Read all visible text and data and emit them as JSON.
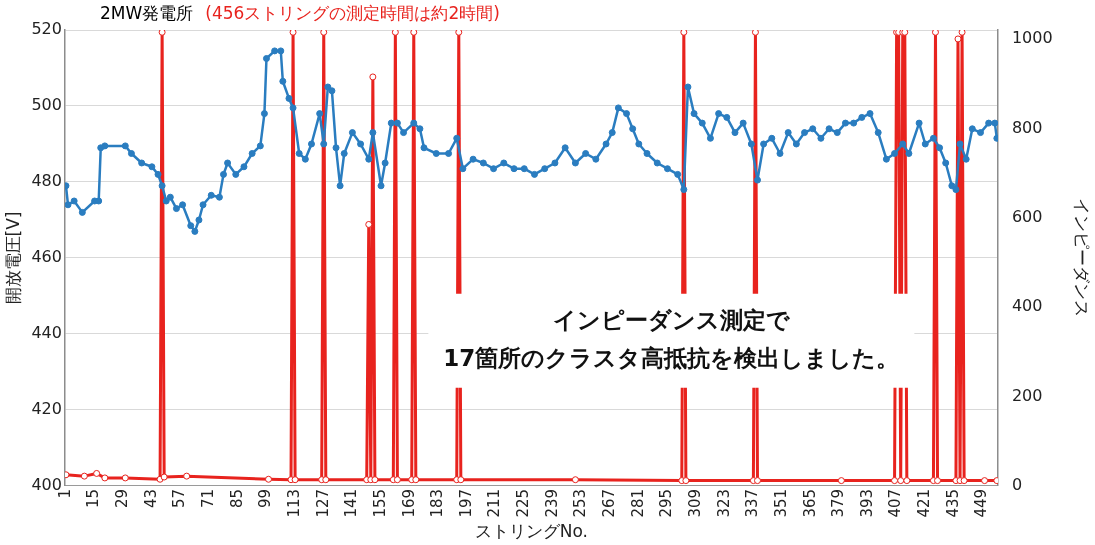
{
  "chart_data": {
    "type": "line",
    "title": "2MW発電所",
    "subtitle": "(456ストリングの測定時間は約2時間)",
    "xlabel": "ストリングNo.",
    "ylabel": "開放電圧[V]",
    "y2label": "インピーダンス",
    "annotations": [
      "インピーダンス測定で\n17箇所のクラスタ高抵抗を検出しました。"
    ],
    "xlim": [
      0.5,
      456.5
    ],
    "xticks": [
      1,
      15,
      29,
      43,
      57,
      71,
      85,
      99,
      113,
      127,
      141,
      155,
      169,
      183,
      197,
      211,
      225,
      239,
      253,
      267,
      281,
      295,
      309,
      323,
      337,
      351,
      365,
      379,
      393,
      407,
      421,
      435,
      449
    ],
    "ylim": [
      400,
      520
    ],
    "yticks": [
      400,
      420,
      440,
      460,
      480,
      500,
      520
    ],
    "y2lim": [
      0,
      1020
    ],
    "y2ticks": [
      0,
      200,
      400,
      600,
      800,
      1000
    ],
    "grid": "y",
    "legend": false,
    "marker": "circle",
    "series": [
      {
        "color": "#2a7dc0",
        "x": [
          1,
          2,
          5,
          9,
          15,
          17,
          18,
          20,
          30,
          33,
          38,
          43,
          46,
          48,
          50,
          52,
          55,
          58,
          62,
          64,
          66,
          68,
          72,
          76,
          78,
          80,
          84,
          88,
          92,
          96,
          98,
          99,
          103,
          106,
          107,
          110,
          112,
          115,
          118,
          121,
          125,
          127,
          129,
          131,
          133,
          135,
          137,
          141,
          145,
          149,
          151,
          155,
          157,
          160,
          163,
          166,
          171,
          174,
          176,
          182,
          188,
          192,
          195,
          200,
          205,
          210,
          215,
          220,
          225,
          230,
          235,
          240,
          245,
          250,
          255,
          260,
          265,
          268,
          271,
          275,
          278,
          281,
          285,
          290,
          295,
          300,
          303,
          305,
          308,
          312,
          316,
          320,
          324,
          328,
          332,
          336,
          339,
          342,
          346,
          350,
          354,
          358,
          362,
          366,
          370,
          374,
          378,
          382,
          386,
          390,
          394,
          398,
          402,
          406,
          410,
          413,
          418,
          421,
          425,
          428,
          431,
          434,
          436,
          438,
          441,
          444,
          448,
          452,
          455,
          456
        ],
        "values": [
          479,
          474,
          475,
          472,
          475,
          475,
          489,
          489.5,
          489.5,
          487.5,
          485,
          484,
          482,
          479,
          475,
          476,
          473,
          474,
          468.5,
          467,
          470,
          474,
          476.5,
          476,
          482,
          485,
          482,
          484,
          487.5,
          489.5,
          498,
          512.5,
          514.5,
          514.5,
          506.5,
          502,
          499.5,
          487.5,
          486,
          490,
          498,
          490,
          505,
          504,
          489,
          479,
          487.5,
          493,
          490,
          486,
          493,
          479,
          485,
          495.5,
          495.5,
          493,
          495.5,
          494,
          489,
          487.5,
          487.5,
          491.5,
          483.5,
          486,
          485,
          483.5,
          485,
          483.5,
          483.5,
          482,
          483.5,
          485,
          489,
          485,
          487.5,
          486,
          490,
          493,
          499.5,
          498,
          494,
          490,
          487.5,
          485,
          483.5,
          482,
          478,
          505,
          498,
          495.5,
          491.5,
          498,
          497,
          493,
          495.5,
          490,
          480.5,
          490,
          491.5,
          487.5,
          493,
          490,
          493,
          494,
          491.5,
          494,
          493,
          495.5,
          495.5,
          497,
          498,
          493,
          486,
          487.5,
          490,
          487.5,
          495.5,
          490,
          491.5,
          489,
          485,
          479,
          478,
          490,
          486,
          494,
          493,
          495.5,
          495.5,
          491.5
        ]
      },
      {
        "color": "#e8231e",
        "axis": "y2",
        "x": [
          1,
          10,
          16,
          20,
          30,
          47,
          48,
          49,
          60,
          100,
          111,
          112,
          113,
          126,
          127,
          128,
          148,
          149,
          150,
          151,
          152,
          161,
          162,
          163,
          170,
          171,
          172,
          192,
          193,
          194,
          250,
          302,
          303,
          304,
          337,
          338,
          339,
          380,
          406,
          407,
          408,
          409,
          410,
          411,
          412,
          425,
          426,
          427,
          436,
          437,
          438,
          439,
          440,
          450,
          456
        ],
        "values": [
          25,
          22,
          28,
          18,
          18,
          15,
          1015,
          20,
          22,
          15,
          14,
          1015,
          14,
          14,
          1015,
          14,
          14,
          585,
          14,
          915,
          14,
          14,
          1015,
          14,
          14,
          1015,
          14,
          14,
          1015,
          14,
          14,
          12,
          1015,
          12,
          12,
          1015,
          12,
          12,
          12,
          1015,
          1015,
          12,
          1015,
          1015,
          12,
          12,
          1015,
          12,
          12,
          1000,
          12,
          1015,
          12,
          12,
          12
        ]
      }
    ]
  }
}
